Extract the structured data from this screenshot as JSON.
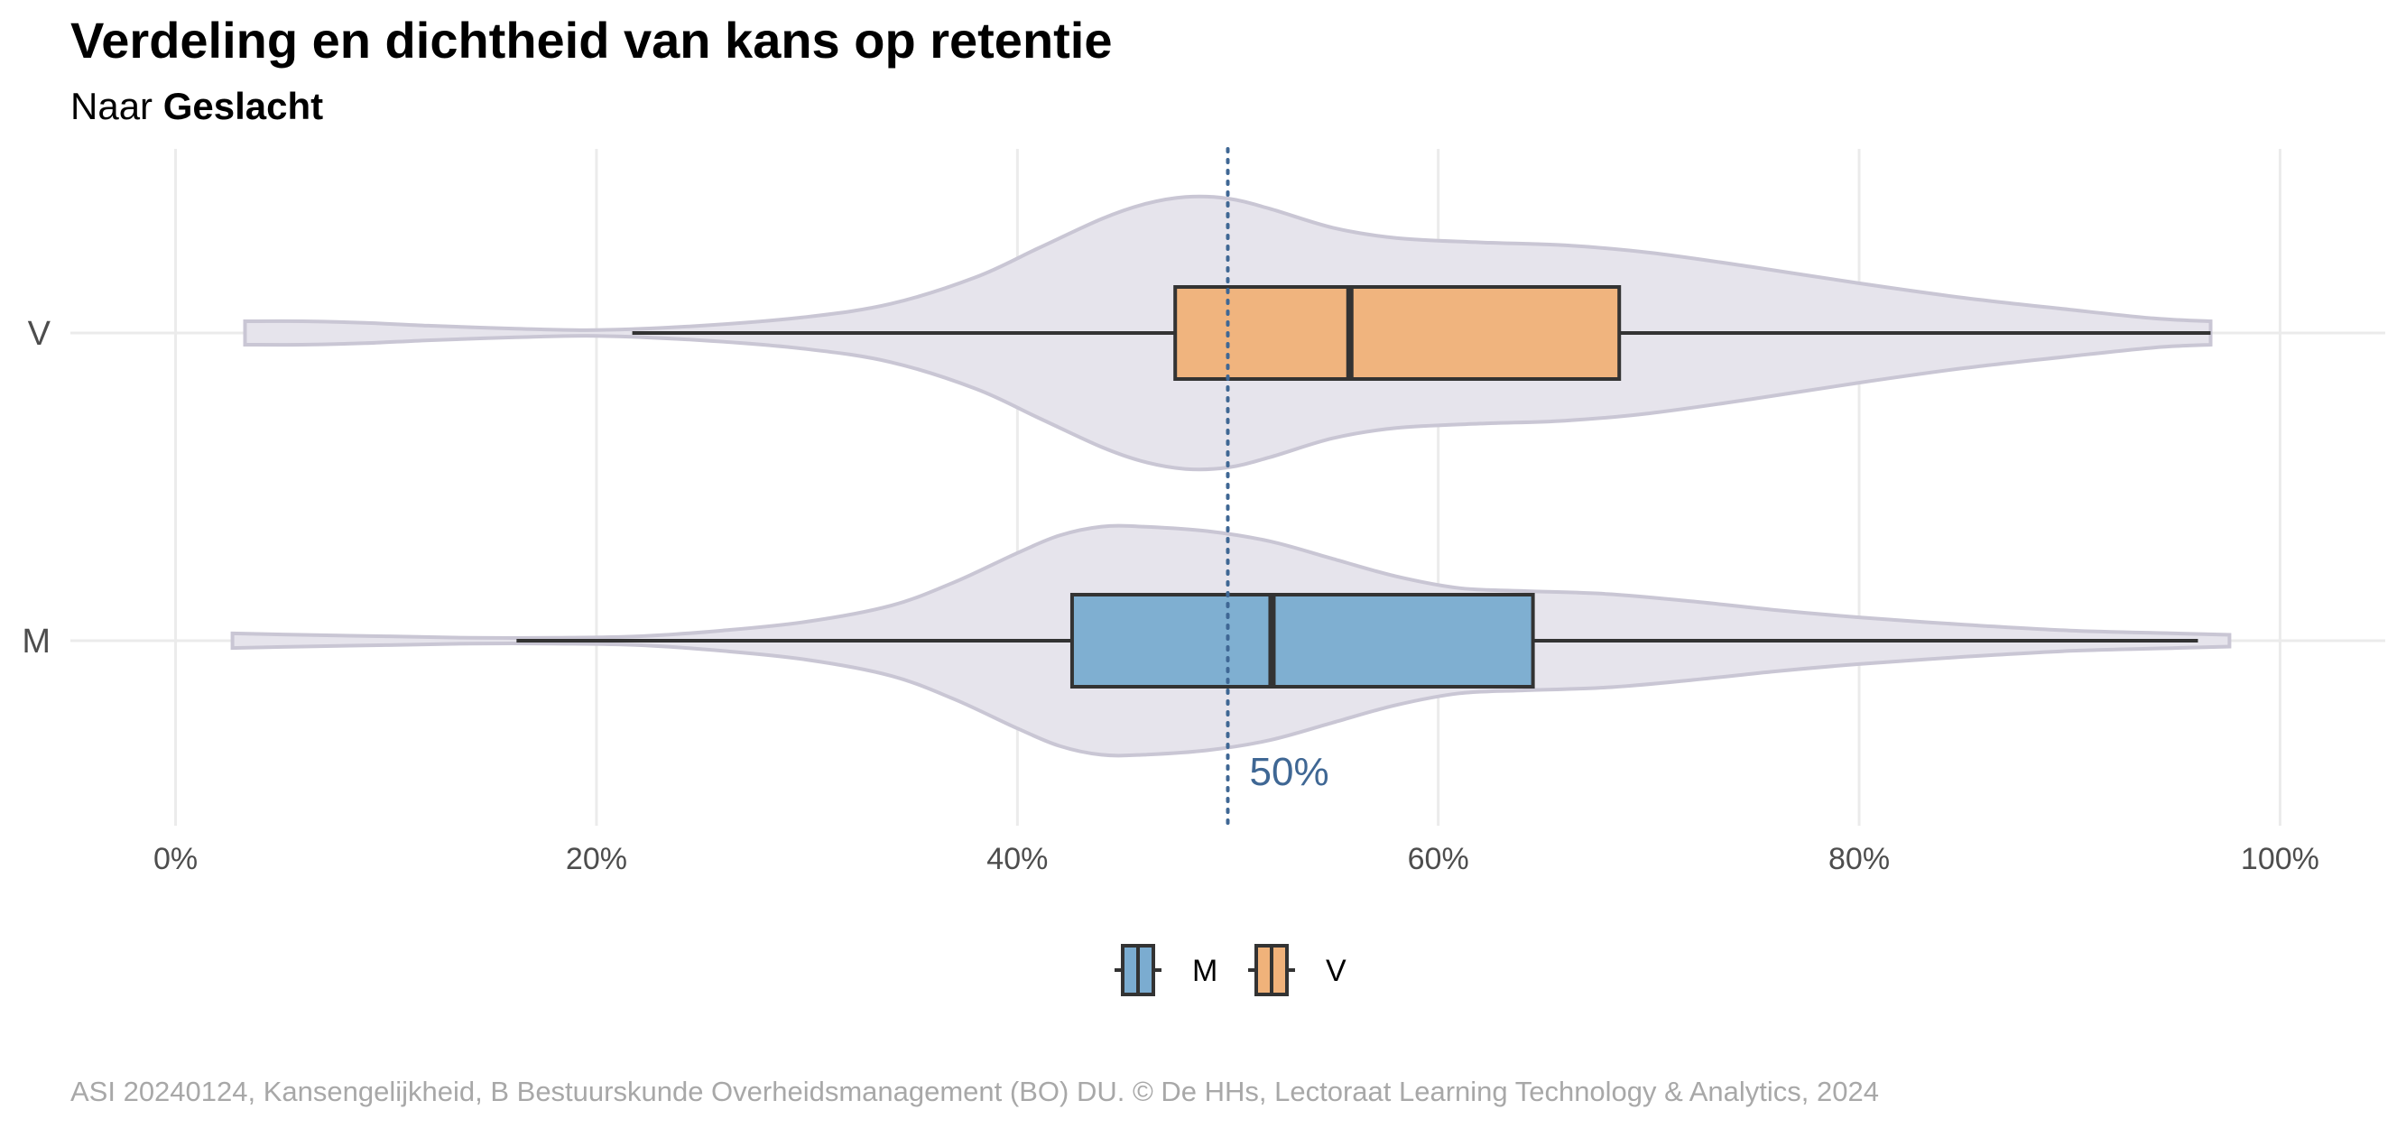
{
  "chart_data": {
    "type": "violin-boxplot",
    "title": "Verdeling en dichtheid van kans op retentie",
    "subtitle_prefix": "Naar",
    "subtitle_group": "Geslacht",
    "caption": "ASI 20240124, Kansengelijkheid, B Bestuurskunde Overheidsmanagement (BO) DU. © De HHs, Lectoraat Learning Technology & Analytics, 2024",
    "xlim": [
      -5,
      105
    ],
    "x_ticks": [
      0,
      20,
      40,
      60,
      80,
      100
    ],
    "x_tick_labels": [
      "0%",
      "20%",
      "40%",
      "60%",
      "80%",
      "100%"
    ],
    "grid": true,
    "legend_position": "bottom",
    "reference_line": {
      "value": 50,
      "label": "50%",
      "color": "#3f6794"
    },
    "violin_fill": "#e6e4ec",
    "violin_stroke": "#c9c6d4",
    "categories": [
      "V",
      "M"
    ],
    "series": [
      {
        "name": "V",
        "color": "#f0b27a",
        "box": {
          "whisker_low": 21.7,
          "q1": 47.5,
          "median": 55.8,
          "q3": 68.6,
          "whisker_high": 96.7
        },
        "density": [
          [
            3.3,
            0.08
          ],
          [
            6,
            0.08
          ],
          [
            9,
            0.07
          ],
          [
            12,
            0.05
          ],
          [
            16,
            0.03
          ],
          [
            20,
            0.02
          ],
          [
            25,
            0.05
          ],
          [
            30,
            0.11
          ],
          [
            34,
            0.2
          ],
          [
            38,
            0.38
          ],
          [
            41,
            0.58
          ],
          [
            44,
            0.78
          ],
          [
            46,
            0.88
          ],
          [
            48,
            0.93
          ],
          [
            50,
            0.92
          ],
          [
            52,
            0.85
          ],
          [
            55,
            0.72
          ],
          [
            58,
            0.65
          ],
          [
            62,
            0.62
          ],
          [
            66,
            0.6
          ],
          [
            70,
            0.55
          ],
          [
            75,
            0.45
          ],
          [
            80,
            0.34
          ],
          [
            85,
            0.24
          ],
          [
            90,
            0.16
          ],
          [
            94,
            0.1
          ],
          [
            96.7,
            0.08
          ]
        ]
      },
      {
        "name": "M",
        "color": "#7bacd0",
        "box": {
          "whisker_low": 16.2,
          "q1": 42.6,
          "median": 52.1,
          "q3": 64.5,
          "whisker_high": 96.1
        },
        "density": [
          [
            2.7,
            0.05
          ],
          [
            6,
            0.04
          ],
          [
            10,
            0.03
          ],
          [
            14,
            0.02
          ],
          [
            18,
            0.02
          ],
          [
            22,
            0.03
          ],
          [
            26,
            0.07
          ],
          [
            30,
            0.13
          ],
          [
            34,
            0.24
          ],
          [
            37,
            0.4
          ],
          [
            40,
            0.6
          ],
          [
            42,
            0.72
          ],
          [
            44,
            0.78
          ],
          [
            46,
            0.78
          ],
          [
            49,
            0.75
          ],
          [
            52,
            0.68
          ],
          [
            55,
            0.56
          ],
          [
            58,
            0.44
          ],
          [
            61,
            0.36
          ],
          [
            64,
            0.34
          ],
          [
            68,
            0.32
          ],
          [
            72,
            0.27
          ],
          [
            76,
            0.21
          ],
          [
            80,
            0.16
          ],
          [
            85,
            0.11
          ],
          [
            90,
            0.07
          ],
          [
            95,
            0.05
          ],
          [
            97.6,
            0.04
          ]
        ]
      }
    ]
  }
}
